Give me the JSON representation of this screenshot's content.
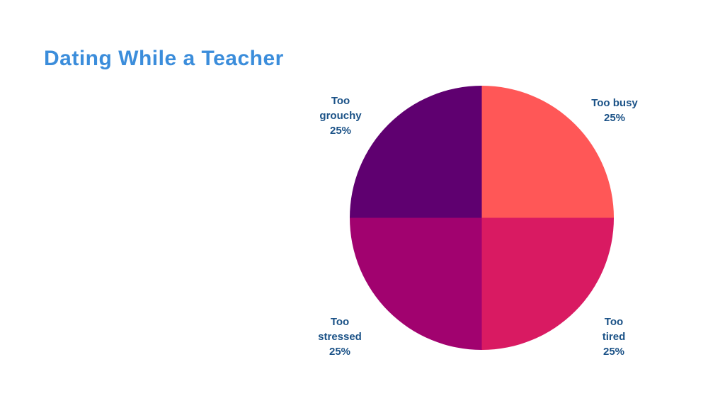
{
  "header": {
    "title": "Dating While a Teacher"
  },
  "colors": {
    "background": "#FFFFFF",
    "title_text": "#3B8DDB",
    "label_text": "#1B5287"
  },
  "chart_data": {
    "type": "pie",
    "title": "Dating While a Teacher",
    "start_angle_deg": 0,
    "direction": "clockwise",
    "legend_position": "none",
    "labels_position": "outside",
    "slices": [
      {
        "label": "Too busy",
        "value": 25,
        "percent_label": "25%",
        "color": "#FF5757",
        "label_lines": [
          "Too busy",
          "25%"
        ]
      },
      {
        "label": "Too tired",
        "value": 25,
        "percent_label": "25%",
        "color": "#D91A62",
        "label_lines": [
          "Too",
          "tired",
          "25%"
        ]
      },
      {
        "label": "Too stressed",
        "value": 25,
        "percent_label": "25%",
        "color": "#A1026F",
        "label_lines": [
          "Too",
          "stressed",
          "25%"
        ]
      },
      {
        "label": "Too grouchy",
        "value": 25,
        "percent_label": "25%",
        "color": "#5F0070",
        "label_lines": [
          "Too",
          "grouchy",
          "25%"
        ]
      }
    ]
  }
}
